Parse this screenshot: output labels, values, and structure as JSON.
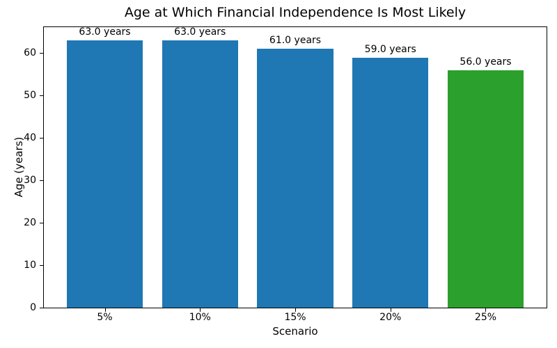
{
  "chart_data": {
    "type": "bar",
    "title": "Age at Which Financial Independence Is Most Likely",
    "xlabel": "Scenario",
    "ylabel": "Age (years)",
    "categories": [
      "5%",
      "10%",
      "15%",
      "20%",
      "25%"
    ],
    "values": [
      63.0,
      63.0,
      61.0,
      59.0,
      56.0
    ],
    "bar_labels": [
      "63.0 years",
      "63.0 years",
      "61.0 years",
      "59.0 years",
      "56.0 years"
    ],
    "bar_colors": [
      "#1f77b4",
      "#1f77b4",
      "#1f77b4",
      "#1f77b4",
      "#2ca02c"
    ],
    "ylim": [
      0,
      66.15
    ],
    "yticks": [
      0,
      10,
      20,
      30,
      40,
      50,
      60
    ],
    "grid": false,
    "legend": "none",
    "background_color": "#ffffff",
    "frame_color": "#000000"
  }
}
